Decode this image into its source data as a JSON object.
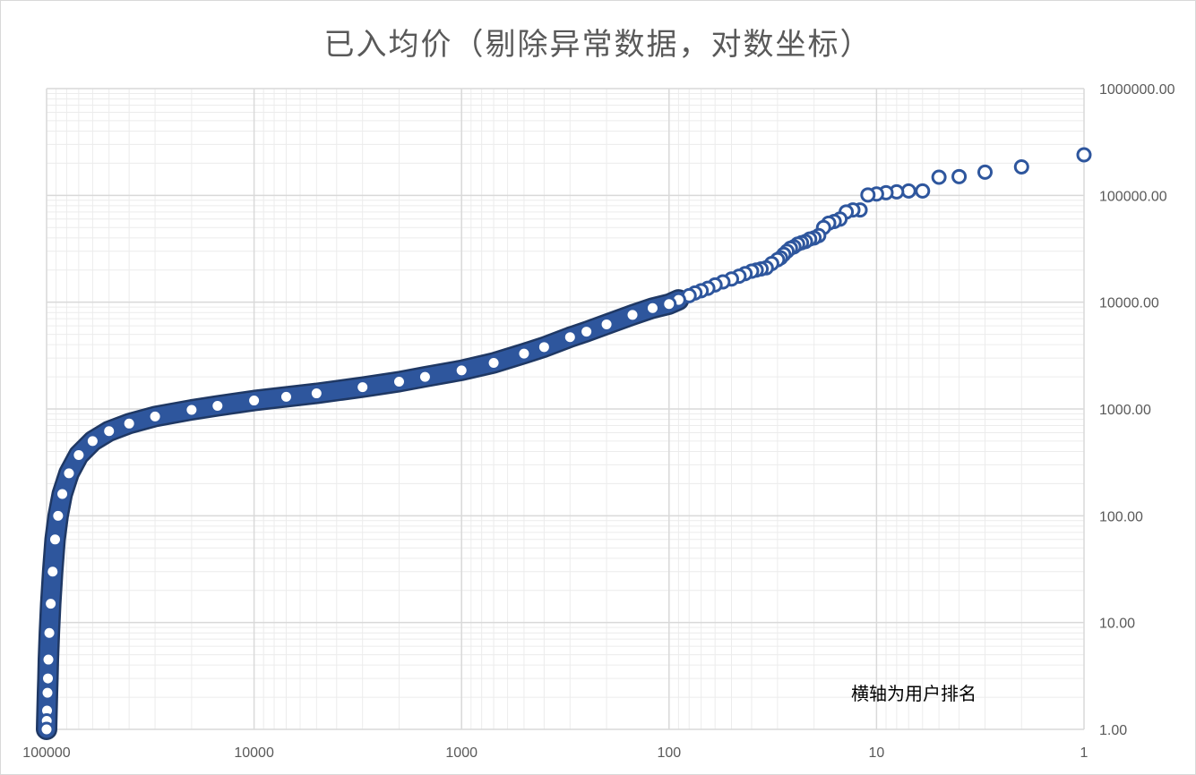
{
  "chart_data": {
    "type": "scatter",
    "title": "已入均价（剔除异常数据，对数坐标）",
    "xlabel": "",
    "ylabel": "",
    "annotation": "横轴为用户排名",
    "x_scale": "log",
    "x_reversed": true,
    "x_range": [
      1,
      100000
    ],
    "x_ticks": [
      "100000",
      "10000",
      "1000",
      "100",
      "10",
      "1"
    ],
    "y_scale": "log",
    "y_range": [
      1,
      1000000
    ],
    "y_ticks": [
      "1.00",
      "10.00",
      "100.00",
      "1000.00",
      "10000.00",
      "100000.00",
      "1000000.00"
    ],
    "y_axis_position": "right",
    "grid": true,
    "legend": "none",
    "marker": "circle",
    "colors": {
      "fill": "#2e569d",
      "outline": "#1f3864",
      "grid_major": "#d9d9d9",
      "grid_minor": "#ececec"
    },
    "series": [
      {
        "points": [
          [
            1,
            240000
          ],
          [
            2,
            185000
          ],
          [
            3,
            165000
          ],
          [
            4,
            150000
          ],
          [
            5,
            148000
          ],
          [
            6,
            110000
          ],
          [
            7,
            110000
          ],
          [
            8,
            108000
          ],
          [
            9,
            106000
          ],
          [
            10,
            103000
          ],
          [
            11,
            101000
          ],
          [
            12,
            73000
          ],
          [
            13,
            73000
          ],
          [
            14,
            70000
          ],
          [
            15,
            60000
          ],
          [
            16,
            57000
          ],
          [
            17,
            55000
          ],
          [
            18,
            50000
          ],
          [
            19,
            42000
          ],
          [
            20,
            40000
          ],
          [
            21,
            39000
          ],
          [
            22,
            37000
          ],
          [
            23,
            36000
          ],
          [
            24,
            35000
          ],
          [
            25,
            33000
          ],
          [
            26,
            32000
          ],
          [
            27,
            30000
          ],
          [
            28,
            28000
          ],
          [
            29,
            26000
          ],
          [
            30,
            25000
          ],
          [
            32,
            23000
          ],
          [
            34,
            21000
          ],
          [
            36,
            20500
          ],
          [
            38,
            20000
          ],
          [
            40,
            19500
          ],
          [
            43,
            18500
          ],
          [
            46,
            17500
          ],
          [
            50,
            16500
          ],
          [
            55,
            15500
          ],
          [
            60,
            14500
          ],
          [
            65,
            13500
          ],
          [
            70,
            12800
          ],
          [
            75,
            12200
          ],
          [
            80,
            11500
          ],
          [
            90,
            10500
          ],
          [
            100,
            9600
          ],
          [
            120,
            8800
          ],
          [
            150,
            7600
          ],
          [
            200,
            6200
          ],
          [
            250,
            5300
          ],
          [
            300,
            4700
          ],
          [
            400,
            3800
          ],
          [
            500,
            3300
          ],
          [
            700,
            2700
          ],
          [
            1000,
            2300
          ],
          [
            1500,
            2000
          ],
          [
            2000,
            1800
          ],
          [
            3000,
            1600
          ],
          [
            5000,
            1400
          ],
          [
            7000,
            1300
          ],
          [
            10000,
            1200
          ],
          [
            15000,
            1070
          ],
          [
            20000,
            980
          ],
          [
            30000,
            850
          ],
          [
            40000,
            730
          ],
          [
            50000,
            620
          ],
          [
            60000,
            500
          ],
          [
            70000,
            370
          ],
          [
            78000,
            250
          ],
          [
            84000,
            160
          ],
          [
            88000,
            100
          ],
          [
            91000,
            60
          ],
          [
            93500,
            30
          ],
          [
            95500,
            15
          ],
          [
            97000,
            8
          ],
          [
            98000,
            4.5
          ],
          [
            98500,
            3
          ],
          [
            99000,
            2.2
          ],
          [
            99500,
            1.5
          ],
          [
            99800,
            1.2
          ],
          [
            100000,
            1
          ]
        ]
      }
    ]
  }
}
